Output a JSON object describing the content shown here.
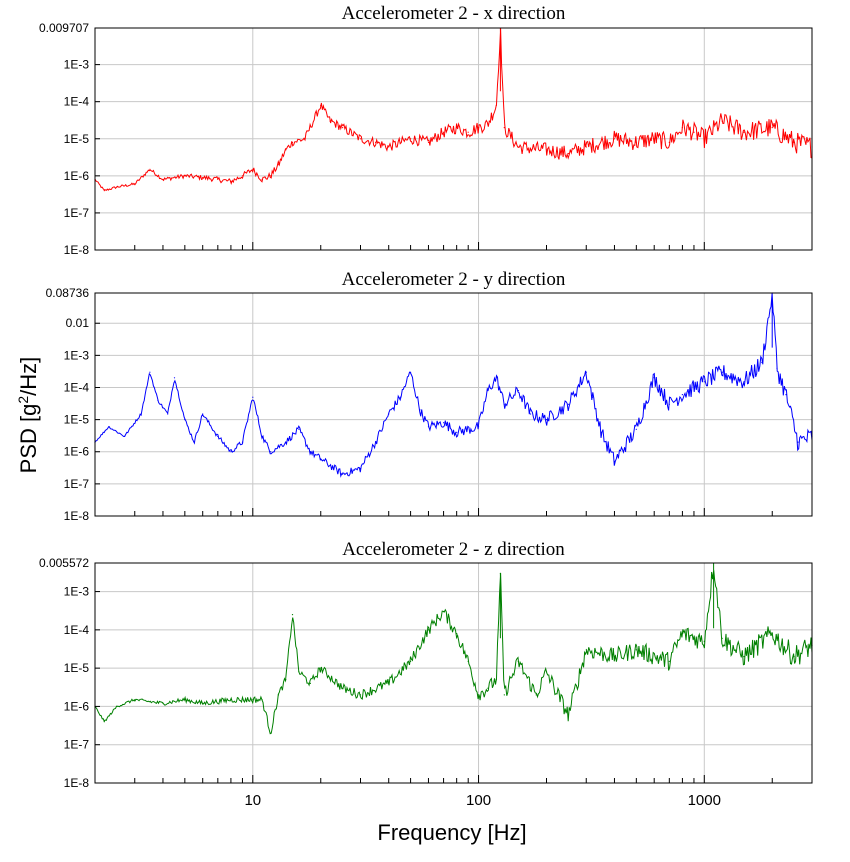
{
  "figure": {
    "ylabel": "PSD [g2/Hz]",
    "ylabel_main": "PSD [g",
    "ylabel_sup": "2",
    "ylabel_tail": "/Hz]",
    "xlabel": "Frequency [Hz]"
  },
  "chart_data": [
    {
      "type": "line",
      "title": "Accelerometer 2 - x direction",
      "color": "#ff0000",
      "xscale": "log",
      "yscale": "log",
      "xlim": [
        2,
        3000
      ],
      "ylim": [
        1e-08,
        0.009707
      ],
      "yticks": [
        {
          "value": 1e-08,
          "label": "1E-8"
        },
        {
          "value": 1e-07,
          "label": "1E-7"
        },
        {
          "value": 1e-06,
          "label": "1E-6"
        },
        {
          "value": 1e-05,
          "label": "1E-5"
        },
        {
          "value": 0.0001,
          "label": "1E-4"
        },
        {
          "value": 0.001,
          "label": "1E-3"
        },
        {
          "value": 0.009707,
          "label": "0.009707"
        }
      ],
      "xticks": [
        {
          "value": 10,
          "label": "10"
        },
        {
          "value": 100,
          "label": "100"
        },
        {
          "value": 1000,
          "label": "1000"
        }
      ],
      "grid": true,
      "series": [
        {
          "x": [
            2,
            2.2,
            2.5,
            3,
            3.5,
            4,
            5,
            6,
            7,
            8,
            9,
            10,
            11,
            12,
            13,
            14,
            15,
            17,
            20,
            22,
            25,
            30,
            35,
            40,
            50,
            60,
            70,
            80,
            90,
            100,
            110,
            120,
            125,
            130,
            150,
            200,
            250,
            300,
            400,
            500,
            600,
            700,
            800,
            900,
            1000,
            1200,
            1500,
            2000,
            2500,
            3000
          ],
          "y": [
            8e-07,
            4e-07,
            5e-07,
            6e-07,
            1.5e-06,
            8e-07,
            1e-06,
            9e-07,
            8e-07,
            7e-07,
            1e-06,
            1.5e-06,
            8e-07,
            1e-06,
            2e-06,
            5e-06,
            8e-06,
            1e-05,
            8e-05,
            3e-05,
            2e-05,
            1e-05,
            8e-06,
            6e-06,
            1e-05,
            8e-06,
            1.5e-05,
            2e-05,
            1.5e-05,
            2e-05,
            2.5e-05,
            8e-05,
            0.0095,
            2e-05,
            6e-06,
            5e-06,
            4e-06,
            6e-06,
            1e-05,
            8e-06,
            1e-05,
            8e-06,
            2e-05,
            1.5e-05,
            1e-05,
            3e-05,
            1.5e-05,
            2e-05,
            8e-06,
            6e-06
          ]
        }
      ]
    },
    {
      "type": "line",
      "title": "Accelerometer 2 - y direction",
      "color": "#0000ff",
      "xscale": "log",
      "yscale": "log",
      "xlim": [
        2,
        3000
      ],
      "ylim": [
        1e-08,
        0.08736
      ],
      "yticks": [
        {
          "value": 1e-08,
          "label": "1E-8"
        },
        {
          "value": 1e-07,
          "label": "1E-7"
        },
        {
          "value": 1e-06,
          "label": "1E-6"
        },
        {
          "value": 1e-05,
          "label": "1E-5"
        },
        {
          "value": 0.0001,
          "label": "1E-4"
        },
        {
          "value": 0.001,
          "label": "1E-3"
        },
        {
          "value": 0.01,
          "label": "0.01"
        },
        {
          "value": 0.08736,
          "label": "0.08736"
        }
      ],
      "xticks": [
        {
          "value": 10,
          "label": "10"
        },
        {
          "value": 100,
          "label": "100"
        },
        {
          "value": 1000,
          "label": "1000"
        }
      ],
      "grid": true,
      "series": [
        {
          "x": [
            2,
            2.3,
            2.7,
            3.2,
            3.5,
            3.8,
            4.2,
            4.5,
            5,
            5.5,
            6,
            7,
            8,
            9,
            10,
            11,
            12,
            14,
            16,
            18,
            20,
            25,
            30,
            35,
            40,
            45,
            50,
            55,
            60,
            70,
            80,
            100,
            110,
            120,
            130,
            150,
            170,
            200,
            250,
            300,
            320,
            350,
            400,
            500,
            600,
            700,
            800,
            1000,
            1200,
            1500,
            1800,
            2000,
            2100,
            2300,
            2600,
            3000
          ],
          "y": [
            2e-06,
            6e-06,
            3e-06,
            1.5e-05,
            0.0003,
            4e-05,
            1.5e-05,
            0.0002,
            1e-05,
            2e-06,
            1.5e-05,
            3e-06,
            1e-06,
            2e-06,
            5e-05,
            3e-06,
            1e-06,
            2e-06,
            5e-06,
            1e-06,
            6e-07,
            2e-07,
            3e-07,
            2e-06,
            1.5e-05,
            5e-05,
            0.0003,
            2e-05,
            6e-06,
            8e-06,
            4e-06,
            6e-06,
            8e-05,
            0.0002,
            3e-05,
            8e-05,
            1.5e-05,
            1e-05,
            3e-05,
            0.0003,
            5e-05,
            4e-06,
            5e-07,
            5e-06,
            0.0002,
            3e-05,
            6e-05,
            0.00015,
            0.0003,
            0.00015,
            0.0006,
            0.0873,
            0.0004,
            6e-05,
            2e-06,
            3e-06
          ]
        }
      ]
    },
    {
      "type": "line",
      "title": "Accelerometer 2 - z direction",
      "color": "#008000",
      "xscale": "log",
      "yscale": "log",
      "xlim": [
        2,
        3000
      ],
      "ylim": [
        1e-08,
        0.005572
      ],
      "yticks": [
        {
          "value": 1e-08,
          "label": "1E-8"
        },
        {
          "value": 1e-07,
          "label": "1E-7"
        },
        {
          "value": 1e-06,
          "label": "1E-6"
        },
        {
          "value": 1e-05,
          "label": "1E-5"
        },
        {
          "value": 0.0001,
          "label": "1E-4"
        },
        {
          "value": 0.001,
          "label": "1E-3"
        },
        {
          "value": 0.005572,
          "label": "0.005572"
        }
      ],
      "xticks": [
        {
          "value": 10,
          "label": "10"
        },
        {
          "value": 100,
          "label": "100"
        },
        {
          "value": 1000,
          "label": "1000"
        }
      ],
      "grid": true,
      "series": [
        {
          "x": [
            2,
            2.2,
            2.5,
            3,
            4,
            5,
            6,
            8,
            10,
            11,
            12,
            13,
            14,
            15,
            16,
            18,
            20,
            25,
            30,
            40,
            50,
            60,
            70,
            80,
            90,
            100,
            110,
            120,
            125,
            130,
            150,
            180,
            200,
            250,
            300,
            400,
            500,
            700,
            800,
            1000,
            1100,
            1200,
            1500,
            2000,
            2500,
            3000
          ],
          "y": [
            1e-06,
            4e-07,
            1e-06,
            1.5e-06,
            1.2e-06,
            1.5e-06,
            1.2e-06,
            1.5e-06,
            1.5e-06,
            1.5e-06,
            2e-07,
            2e-06,
            5e-06,
            0.00025,
            8e-06,
            4e-06,
            1e-05,
            3e-06,
            2e-06,
            4e-06,
            1.5e-05,
            0.0001,
            0.0003,
            8e-05,
            1.5e-05,
            2e-06,
            3e-06,
            5e-06,
            0.003,
            2e-06,
            1.5e-05,
            2e-06,
            8e-06,
            6e-07,
            3e-05,
            2e-05,
            3e-05,
            1.5e-05,
            8e-05,
            5e-05,
            0.0055,
            6e-05,
            2e-05,
            8e-05,
            2e-05,
            4e-05
          ]
        }
      ]
    }
  ]
}
